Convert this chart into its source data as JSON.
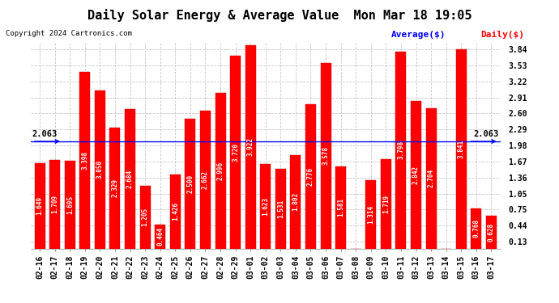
{
  "title": "Daily Solar Energy & Average Value  Mon Mar 18 19:05",
  "copyright": "Copyright 2024 Cartronics.com",
  "average_label": "Average($)",
  "daily_label": "Daily($)",
  "average_value": 2.063,
  "categories": [
    "02-16",
    "02-17",
    "02-18",
    "02-19",
    "02-20",
    "02-21",
    "02-22",
    "02-23",
    "02-24",
    "02-25",
    "02-26",
    "02-27",
    "02-28",
    "02-29",
    "03-01",
    "03-02",
    "03-03",
    "03-04",
    "03-05",
    "03-06",
    "03-07",
    "03-08",
    "03-09",
    "03-10",
    "03-11",
    "03-12",
    "03-13",
    "03-14",
    "03-15",
    "03-16",
    "03-17"
  ],
  "values": [
    1.649,
    1.709,
    1.695,
    3.398,
    3.05,
    2.329,
    2.684,
    1.205,
    0.464,
    1.426,
    2.5,
    2.662,
    2.996,
    3.72,
    3.922,
    1.623,
    1.531,
    1.802,
    2.776,
    3.578,
    1.581,
    0.0,
    1.314,
    1.719,
    3.798,
    2.842,
    2.704,
    0.0,
    3.841,
    0.768,
    0.628
  ],
  "bar_color": "#FF0000",
  "avg_line_color": "#0000FF",
  "background_color": "#FFFFFF",
  "grid_color": "#BBBBBB",
  "ylim_min": 0.0,
  "ylim_max": 3.97,
  "yticks": [
    0.13,
    0.44,
    0.75,
    1.05,
    1.36,
    1.67,
    1.98,
    2.29,
    2.6,
    2.91,
    3.22,
    3.53,
    3.84
  ],
  "title_fontsize": 11,
  "tick_fontsize": 7,
  "bar_label_fontsize": 5.5,
  "avg_fontsize": 7.5,
  "copyright_fontsize": 6.5,
  "legend_fontsize": 8
}
